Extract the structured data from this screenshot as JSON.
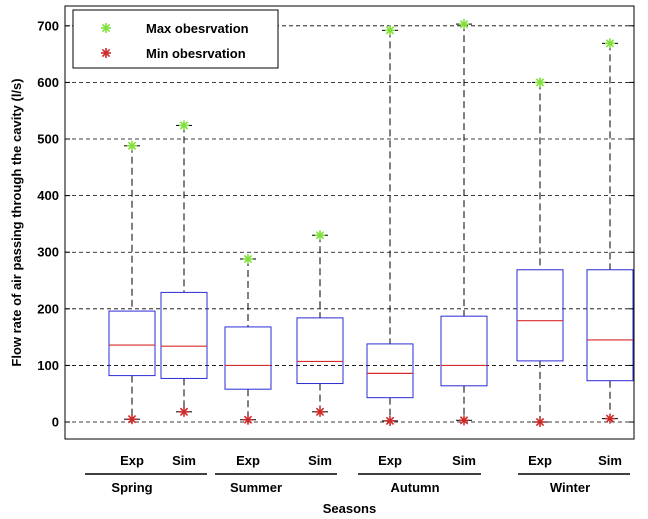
{
  "chart_data": {
    "type": "box",
    "xlabel": "Seasons",
    "ylabel": "Flow rate of air passing through the cavity (l/s)",
    "ylim": [
      -30,
      735
    ],
    "yticks": [
      0,
      100,
      200,
      300,
      400,
      500,
      600,
      700
    ],
    "grid": true,
    "legend": {
      "placement": "top-left",
      "entries": [
        {
          "label": "Max obesrvation",
          "marker": "star",
          "color": "#7fe03a"
        },
        {
          "label": "Min obesrvation",
          "marker": "star",
          "color": "#cc2a2a"
        }
      ]
    },
    "colors": {
      "box": "#2b2bd6",
      "median": "#d62b2b",
      "whisker": "#000000",
      "grid": "#000000",
      "max_marker": "#7fe03a",
      "min_marker": "#cc2a2a"
    },
    "groups": [
      {
        "name": "Spring",
        "items": [
          {
            "label": "Exp",
            "min": 5,
            "q1": 82,
            "median": 136,
            "q3": 196,
            "max": 488
          },
          {
            "label": "Sim",
            "min": 18,
            "q1": 77,
            "median": 134,
            "q3": 229,
            "max": 524
          }
        ]
      },
      {
        "name": "Summer",
        "items": [
          {
            "label": "Exp",
            "min": 4,
            "q1": 58,
            "median": 100,
            "q3": 168,
            "max": 288
          },
          {
            "label": "Sim",
            "min": 18,
            "q1": 68,
            "median": 107,
            "q3": 184,
            "max": 330
          }
        ]
      },
      {
        "name": "Autumn",
        "items": [
          {
            "label": "Exp",
            "min": 2,
            "q1": 43,
            "median": 86,
            "q3": 138,
            "max": 692
          },
          {
            "label": "Sim",
            "min": 3,
            "q1": 64,
            "median": 100,
            "q3": 187,
            "max": 703
          }
        ]
      },
      {
        "name": "Winter",
        "items": [
          {
            "label": "Exp",
            "min": 0,
            "q1": 108,
            "median": 179,
            "q3": 269,
            "max": 600
          },
          {
            "label": "Sim",
            "min": 6,
            "q1": 73,
            "median": 145,
            "q3": 269,
            "max": 669
          }
        ]
      }
    ]
  }
}
